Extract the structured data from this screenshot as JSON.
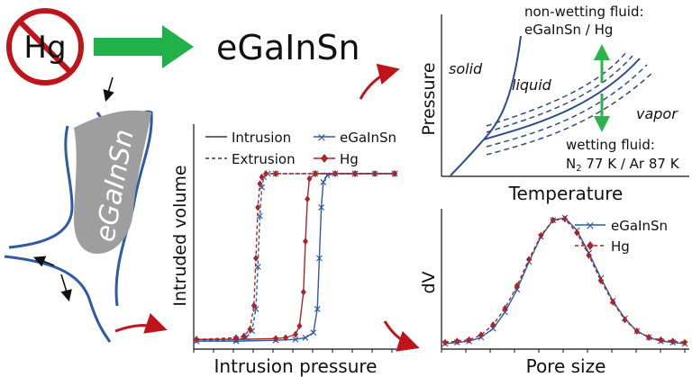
{
  "top": {
    "hg_symbol": "Hg",
    "title": "eGaInSn"
  },
  "pore_label": "eGaInSn",
  "intrusion_chart": {
    "xlabel": "Intrusion pressure",
    "ylabel": "Intruded volume",
    "legend": {
      "intrusion": "Intrusion",
      "extrusion": "Extrusion",
      "egainsn": "eGaInSn",
      "hg": "Hg"
    },
    "colors": {
      "egainsn": "#2e5aa8",
      "hg": "#a8262a"
    }
  },
  "phase_diagram": {
    "xlabel": "Temperature",
    "ylabel": "Pressure",
    "regions": {
      "solid": "solid",
      "liquid": "liquid",
      "vapor": "vapor"
    },
    "nonwetting_line1": "non-wetting fluid:",
    "nonwetting_line2": "eGaInSn / Hg",
    "wetting_line1": "wetting fluid:",
    "wetting_line2_a": "N",
    "wetting_line2_sub": "2",
    "wetting_line2_b": " 77 K / Ar 87 K"
  },
  "psd_chart": {
    "xlabel": "Pore size",
    "ylabel": "dV",
    "legend": {
      "egainsn": "eGaInSn",
      "hg": "Hg"
    }
  },
  "chart_data": [
    {
      "type": "line",
      "xlabel": "Intrusion pressure",
      "ylabel": "Intruded volume",
      "ylim": [
        0,
        1
      ],
      "series": [
        {
          "name": "eGaInSn",
          "style": "solid",
          "x": [
            0,
            0.2,
            0.4,
            0.5,
            0.55,
            0.59,
            0.61,
            0.62,
            0.63,
            0.64,
            0.66,
            0.7,
            0.8,
            0.9,
            1
          ],
          "values": [
            0.01,
            0.01,
            0.015,
            0.02,
            0.03,
            0.06,
            0.2,
            0.5,
            0.8,
            0.95,
            0.99,
            1,
            1,
            1,
            1
          ]
        },
        {
          "name": "Hg",
          "style": "solid",
          "x": [
            0,
            0.2,
            0.4,
            0.45,
            0.5,
            0.52,
            0.54,
            0.55,
            0.56,
            0.57,
            0.6,
            0.7,
            0.8,
            0.9,
            1
          ],
          "values": [
            0.02,
            0.02,
            0.025,
            0.03,
            0.05,
            0.1,
            0.3,
            0.6,
            0.85,
            0.97,
            1,
            1,
            1,
            1,
            1
          ]
        },
        {
          "name": "eGaInSn",
          "style": "dashed",
          "x": [
            0,
            0.2,
            0.25,
            0.28,
            0.3,
            0.31,
            0.32,
            0.33,
            0.34,
            0.36,
            0.4,
            0.6,
            0.8,
            1
          ],
          "values": [
            0.01,
            0.02,
            0.03,
            0.07,
            0.2,
            0.45,
            0.75,
            0.92,
            0.98,
            1,
            1,
            1,
            1,
            1
          ]
        },
        {
          "name": "Hg",
          "style": "dashed",
          "x": [
            0,
            0.2,
            0.24,
            0.27,
            0.29,
            0.3,
            0.31,
            0.32,
            0.33,
            0.35,
            0.4,
            0.6,
            0.8,
            1
          ],
          "values": [
            0.02,
            0.03,
            0.04,
            0.08,
            0.22,
            0.5,
            0.8,
            0.94,
            0.98,
            1,
            1,
            1,
            1,
            1
          ]
        }
      ]
    },
    {
      "type": "line",
      "xlabel": "Pore size",
      "ylabel": "dV",
      "ylim": [
        0,
        1
      ],
      "series": [
        {
          "name": "eGaInSn",
          "x": [
            0,
            0.05,
            0.1,
            0.15,
            0.2,
            0.25,
            0.3,
            0.35,
            0.4,
            0.45,
            0.5,
            0.55,
            0.6,
            0.65,
            0.7,
            0.75,
            0.8,
            0.85,
            0.9,
            0.95,
            1
          ],
          "values": [
            0.0,
            0.01,
            0.02,
            0.05,
            0.12,
            0.25,
            0.43,
            0.65,
            0.85,
            0.98,
            1.0,
            0.9,
            0.72,
            0.52,
            0.34,
            0.2,
            0.1,
            0.05,
            0.02,
            0.01,
            0.0
          ]
        },
        {
          "name": "Hg",
          "x": [
            0,
            0.05,
            0.1,
            0.15,
            0.2,
            0.25,
            0.3,
            0.35,
            0.4,
            0.45,
            0.5,
            0.55,
            0.6,
            0.65,
            0.7,
            0.75,
            0.8,
            0.85,
            0.9,
            0.95,
            1
          ],
          "values": [
            0.01,
            0.02,
            0.03,
            0.07,
            0.15,
            0.28,
            0.46,
            0.67,
            0.86,
            0.98,
            0.99,
            0.88,
            0.7,
            0.5,
            0.33,
            0.19,
            0.1,
            0.05,
            0.03,
            0.02,
            0.01
          ]
        }
      ]
    }
  ]
}
